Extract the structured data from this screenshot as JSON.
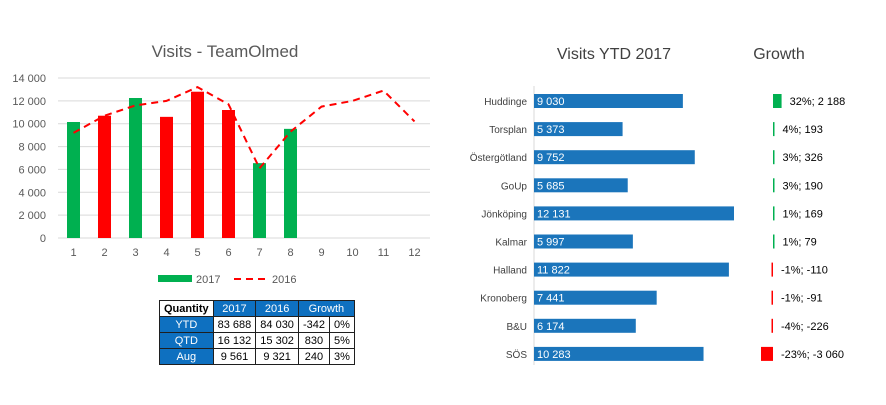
{
  "chart_data": [
    {
      "type": "bar",
      "title": "Visits - TeamOlmed",
      "categories": [
        "1",
        "2",
        "3",
        "4",
        "5",
        "6",
        "7",
        "8",
        "9",
        "10",
        "11",
        "12"
      ],
      "series": [
        {
          "name": "2017",
          "kind": "bar",
          "values": [
            10150,
            10700,
            12250,
            10600,
            12800,
            11200,
            6550,
            9550,
            null,
            null,
            null,
            null
          ],
          "colors": [
            "#00b050",
            "#ff0000",
            "#00b050",
            "#ff0000",
            "#ff0000",
            "#ff0000",
            "#00b050",
            "#00b050"
          ]
        },
        {
          "name": "2016",
          "kind": "line",
          "style": "dashed",
          "color": "#ff0000",
          "values": [
            9200,
            10700,
            11600,
            12000,
            13200,
            11700,
            6100,
            9300,
            11500,
            12000,
            12900,
            10200
          ]
        }
      ],
      "ylim": [
        0,
        14000
      ],
      "yticks": [
        "0",
        "2 000",
        "4 000",
        "6 000",
        "8 000",
        "10 000",
        "12 000",
        "14 000"
      ],
      "grid": true,
      "legend_placement": "bottom"
    },
    {
      "type": "bar",
      "orientation": "horizontal",
      "title": "Visits YTD 2017",
      "categories": [
        "Huddinge",
        "Torsplan",
        "Östergötland",
        "GoUp",
        "Jönköping",
        "Kalmar",
        "Halland",
        "Kronoberg",
        "B&U",
        "SÖS"
      ],
      "values": [
        9030,
        5373,
        9752,
        5685,
        12131,
        5997,
        11822,
        7441,
        6174,
        10283
      ],
      "labels": [
        "9 030",
        "5 373",
        "9 752",
        "5 685",
        "12 131",
        "5 997",
        "11 822",
        "7 441",
        "6 174",
        "10 283"
      ],
      "color": "#1b75bb"
    },
    {
      "type": "bar",
      "orientation": "horizontal",
      "title": "Growth",
      "categories": [
        "Huddinge",
        "Torsplan",
        "Östergötland",
        "GoUp",
        "Jönköping",
        "Kalmar",
        "Halland",
        "Kronoberg",
        "B&U",
        "SÖS"
      ],
      "values": [
        2188,
        193,
        326,
        190,
        169,
        79,
        -110,
        -91,
        -226,
        -3060
      ],
      "labels": [
        "32%; 2 188",
        "4%; 193",
        "3%; 326",
        "3%; 190",
        "1%; 169",
        "1%; 79",
        "-1%; -110",
        "-1%; -91",
        "-4%; -226",
        "-23%; -3 060"
      ],
      "positive_color": "#00b050",
      "negative_color": "#ff0000"
    },
    {
      "type": "table",
      "headers": [
        "Quantity",
        "2017",
        "2016",
        "Growth"
      ],
      "rows": [
        [
          "YTD",
          "83 688",
          "84 030",
          "-342",
          "0%"
        ],
        [
          "QTD",
          "16 132",
          "15 302",
          "830",
          "5%"
        ],
        [
          "Aug",
          "9 561",
          "9 321",
          "240",
          "3%"
        ]
      ]
    }
  ]
}
